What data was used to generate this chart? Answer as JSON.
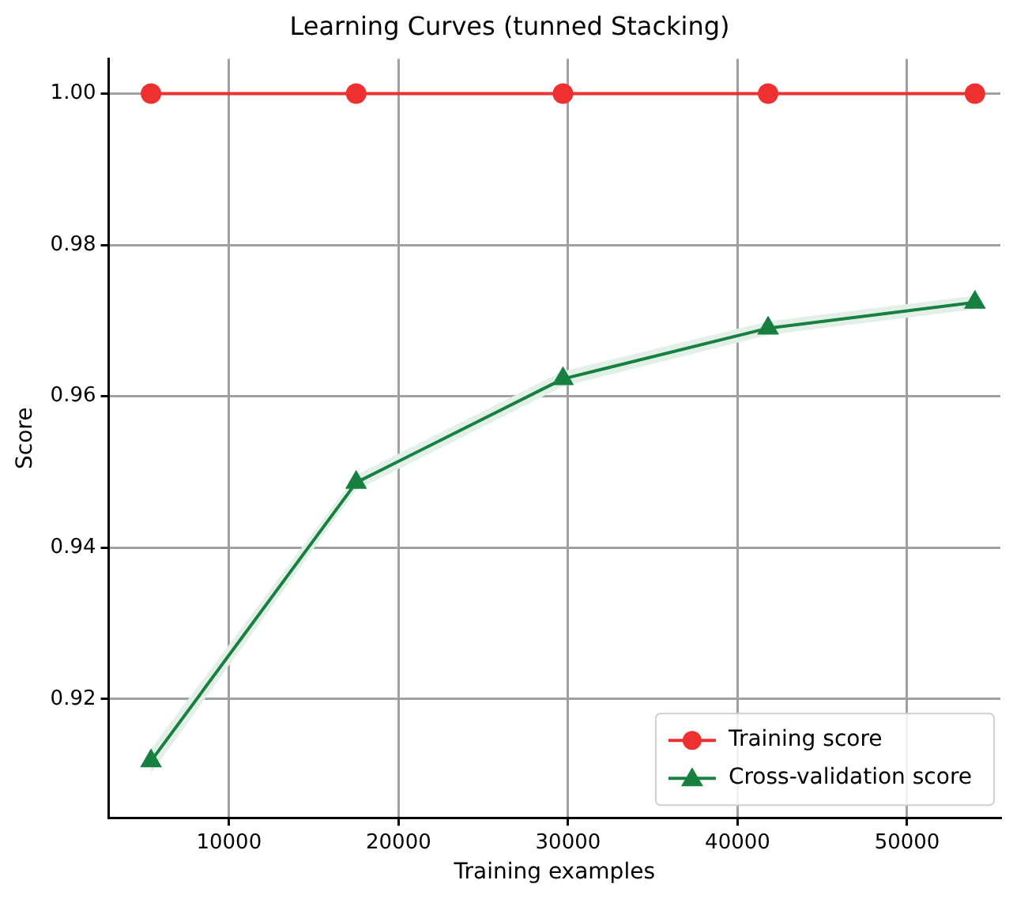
{
  "chart_data": {
    "type": "line",
    "title": "Learning Curves (tunned Stacking)",
    "xlabel": "Training examples",
    "ylabel": "Score",
    "x": [
      5400,
      17500,
      29700,
      41800,
      54000
    ],
    "series": [
      {
        "name": "Training score",
        "color": "#ee3030",
        "marker": "circle",
        "values": [
          1.0,
          1.0,
          1.0,
          1.0,
          1.0
        ]
      },
      {
        "name": "Cross-validation score",
        "color": "#178040",
        "marker": "triangle",
        "values": [
          0.9118,
          0.9486,
          0.9623,
          0.969,
          0.9724
        ],
        "lower": [
          0.9102,
          0.9476,
          0.9613,
          0.9681,
          0.9715
        ],
        "upper": [
          0.9134,
          0.9496,
          0.9633,
          0.9699,
          0.9733
        ]
      }
    ],
    "xlim": [
      2900,
      55500
    ],
    "xticks": [
      10000,
      20000,
      30000,
      40000,
      50000
    ],
    "ylim": [
      0.9043,
      1.0046
    ],
    "yticks": [
      {
        "value": 0.92,
        "label": "0.92"
      },
      {
        "value": 0.94,
        "label": "0.94"
      },
      {
        "value": 0.96,
        "label": "0.96"
      },
      {
        "value": 0.98,
        "label": "0.98"
      },
      {
        "value": 1.0,
        "label": "1.00"
      }
    ],
    "grid": true,
    "legend": "bottom right"
  }
}
